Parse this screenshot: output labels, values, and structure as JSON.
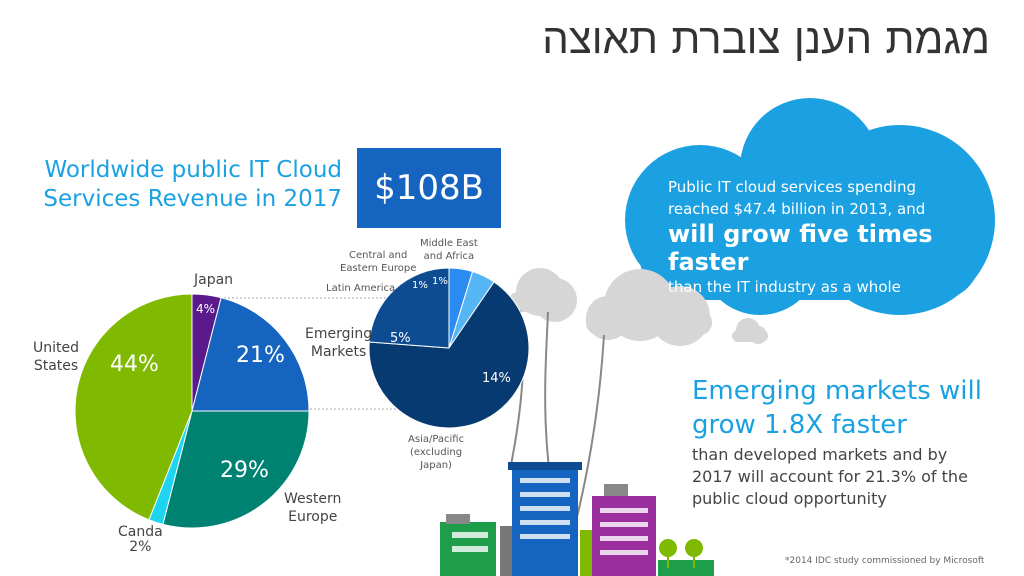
{
  "page": {
    "title": "מגמת הענן צוברת תאוצה",
    "revenue_label_line1": "Worldwide public IT Cloud",
    "revenue_label_line2": "Services Revenue in 2017",
    "revenue_value": "$108B",
    "cloud_text_line1": "Public IT cloud services spending",
    "cloud_text_line2": "reached $47.4 billion in 2013, and",
    "cloud_text_emphasis": "will grow five times faster",
    "cloud_text_line3": "than the IT industry as a whole",
    "emerging_heading_line1": "Emerging markets will",
    "emerging_heading_line2": "grow 1.8X faster",
    "emerging_body": "than developed markets and by 2017 will account for 21.3% of the public cloud opportunity",
    "footnote": "*2014 IDC study commissioned by Microsoft",
    "colors": {
      "accent_blue": "#1ba1e2",
      "box_blue": "#1565c0",
      "cloud_blue": "#1ba1e2"
    }
  },
  "chart_data": [
    {
      "type": "pie",
      "slices": [
        {
          "label": "Japan",
          "value": 4,
          "value_label": "4%",
          "color": "#5b1a8b"
        },
        {
          "label": "Emerging Markets",
          "value": 21,
          "value_label": "21%",
          "color": "#1565c0"
        },
        {
          "label": "Western Europe",
          "value": 29,
          "value_label": "29%",
          "color": "#008272"
        },
        {
          "label": "Canda",
          "value": 2,
          "value_label": "2%",
          "color": "#1fd4f0"
        },
        {
          "label": "United States",
          "value": 44,
          "value_label": "44%",
          "color": "#7fba00"
        }
      ],
      "labels": {
        "japan": "Japan",
        "emerging_line1": "Emerging",
        "emerging_line2": "Markets",
        "western_line1": "Western",
        "western_line2": "Europe",
        "canda": "Canda",
        "us_line1": "United",
        "us_line2": "States"
      }
    },
    {
      "type": "pie",
      "slices": [
        {
          "label": "Latin America",
          "value": 1,
          "value_label": "1%",
          "color": "#2a8bf2"
        },
        {
          "label": "Middle East and Africa",
          "value": 1,
          "value_label": "1%",
          "color": "#56b6f5"
        },
        {
          "label": "Asia/Pacific (excluding Japan)",
          "value": 14,
          "value_label": "14%",
          "color": "#063a70"
        },
        {
          "label": "Central and Eastern Europe",
          "value": 5,
          "value_label": "5%",
          "color": "#0e4c92"
        }
      ],
      "labels": {
        "latin": "Latin America",
        "mea_line1": "Middle East",
        "mea_line2": "and Africa",
        "cee_line1": "Central and",
        "cee_line2": "Eastern Europe",
        "apac_line1": "Asia/Pacific",
        "apac_line2": "(excluding",
        "apac_line3": "Japan)"
      }
    }
  ]
}
